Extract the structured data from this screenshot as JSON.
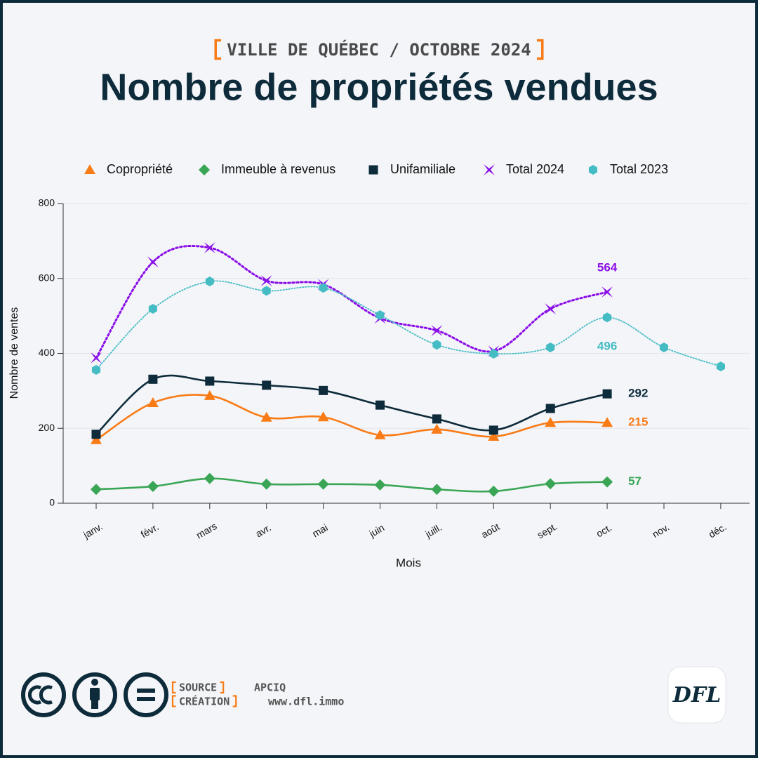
{
  "chart_data": {
    "type": "line",
    "subtitle": "VILLE DE QUÉBEC / OCTOBRE 2024",
    "title": "Nombre de propriétés vendues",
    "x_label": "Mois",
    "y_label": "Nombre de ventes",
    "categories": [
      "janv.",
      "févr.",
      "mars",
      "avr.",
      "mai",
      "juin",
      "juill.",
      "août",
      "sept.",
      "oct.",
      "nov.",
      "déc."
    ],
    "ylim": [
      0,
      800
    ],
    "yticks": [
      0,
      200,
      400,
      600,
      800
    ],
    "grid": true,
    "legend": "top",
    "series": [
      {
        "name": "Copropriété",
        "color": "#f97b16",
        "marker": "triangle",
        "dash": "solid",
        "values": [
          169,
          268,
          287,
          229,
          230,
          182,
          197,
          178,
          215,
          215,
          null,
          null
        ]
      },
      {
        "name": "Immeuble à revenus",
        "color": "#3aa655",
        "marker": "diamond",
        "dash": "solid",
        "values": [
          37,
          45,
          66,
          51,
          51,
          49,
          37,
          32,
          52,
          57,
          null,
          null
        ]
      },
      {
        "name": "Unifamiliale",
        "color": "#0d2b3a",
        "marker": "square",
        "dash": "solid",
        "values": [
          184,
          331,
          326,
          315,
          301,
          262,
          225,
          195,
          253,
          292,
          null,
          null
        ]
      },
      {
        "name": "Total 2024",
        "color": "#8a0ee8",
        "marker": "x",
        "dash": "dotted",
        "values": [
          388,
          644,
          682,
          594,
          584,
          494,
          461,
          406,
          519,
          564,
          null,
          null
        ]
      },
      {
        "name": "Total 2023",
        "color": "#45bcc4",
        "marker": "hexagon",
        "dash": "fine-dotted",
        "values": [
          356,
          519,
          592,
          567,
          575,
          502,
          423,
          399,
          416,
          496,
          416,
          365
        ]
      }
    ]
  },
  "footer": {
    "source_label": "SOURCE",
    "source": "APCIQ",
    "creation_label": "CRÉATION",
    "creation": "www.dfl.immo",
    "logo": "DFL"
  }
}
